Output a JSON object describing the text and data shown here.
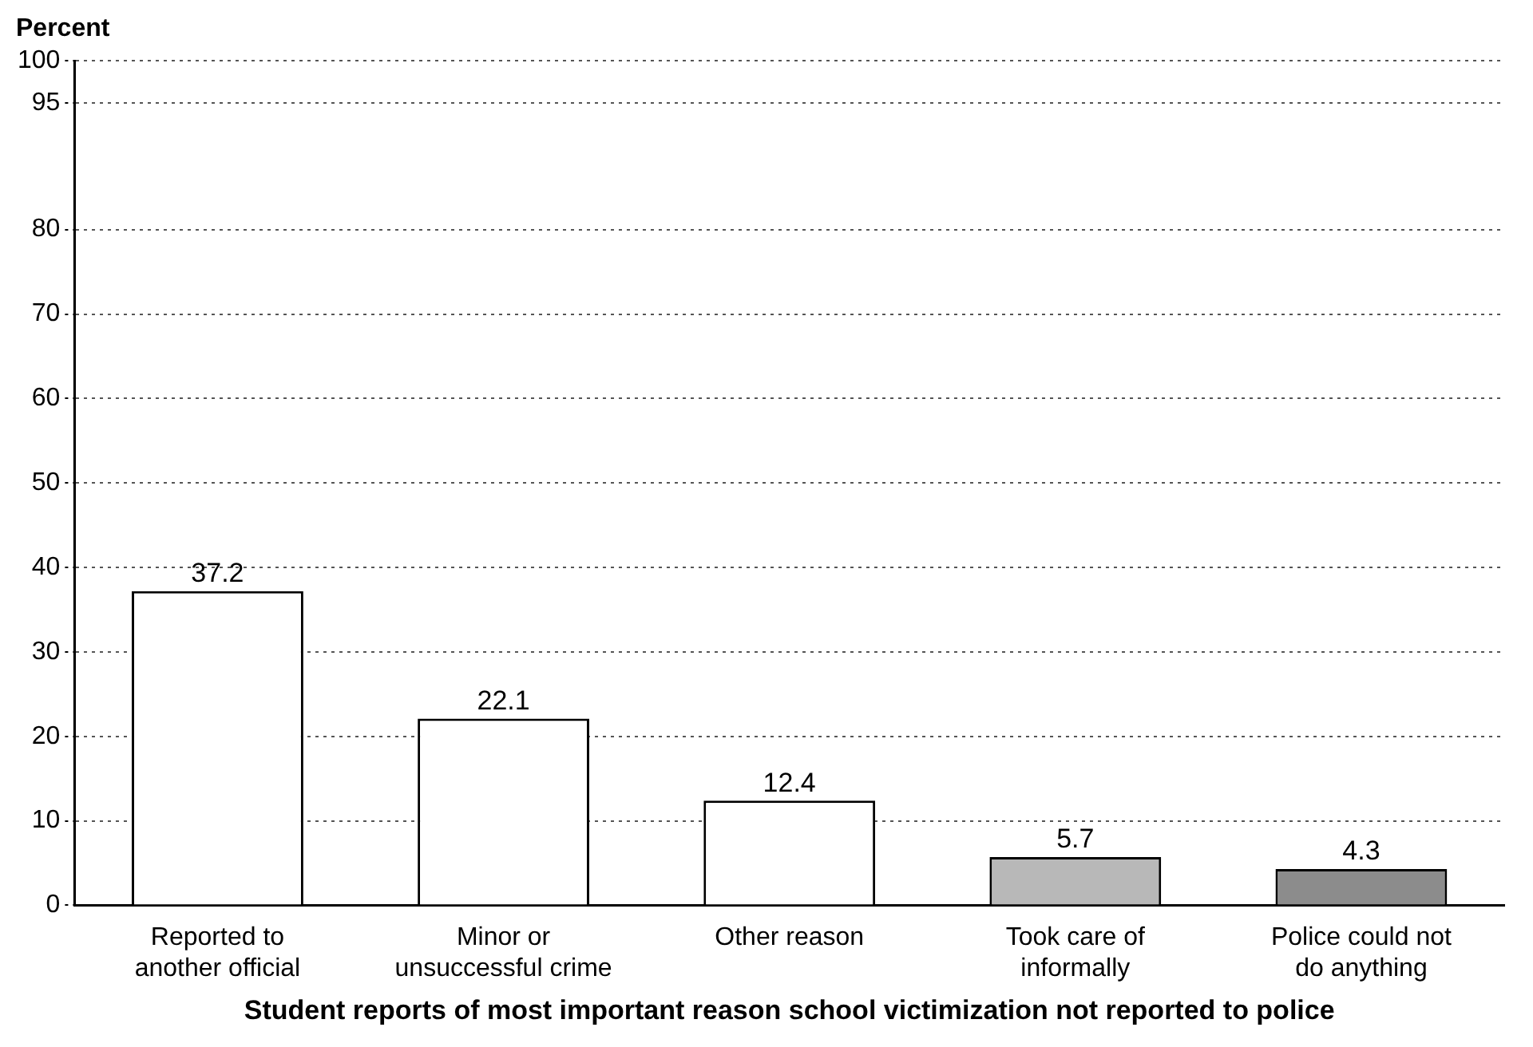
{
  "chart_data": {
    "type": "bar",
    "ylabel": "Percent",
    "xlabel": "Student reports of most important reason school victimization not reported to police",
    "categories": [
      "Reported to another official",
      "Minor or unsuccessful crime",
      "Other reason",
      "Took care of informally",
      "Police could not do anything"
    ],
    "values": [
      37.2,
      22.1,
      12.4,
      5.7,
      4.3
    ],
    "colors": [
      "#ffffff",
      "#ffffff",
      "#ffffff",
      "#b8b8b8",
      "#8c8c8c"
    ],
    "ylim": [
      0,
      100
    ],
    "yticks": [
      0,
      10,
      20,
      30,
      40,
      50,
      60,
      70,
      80,
      95,
      100
    ],
    "grid": "y",
    "data_labels": true
  }
}
